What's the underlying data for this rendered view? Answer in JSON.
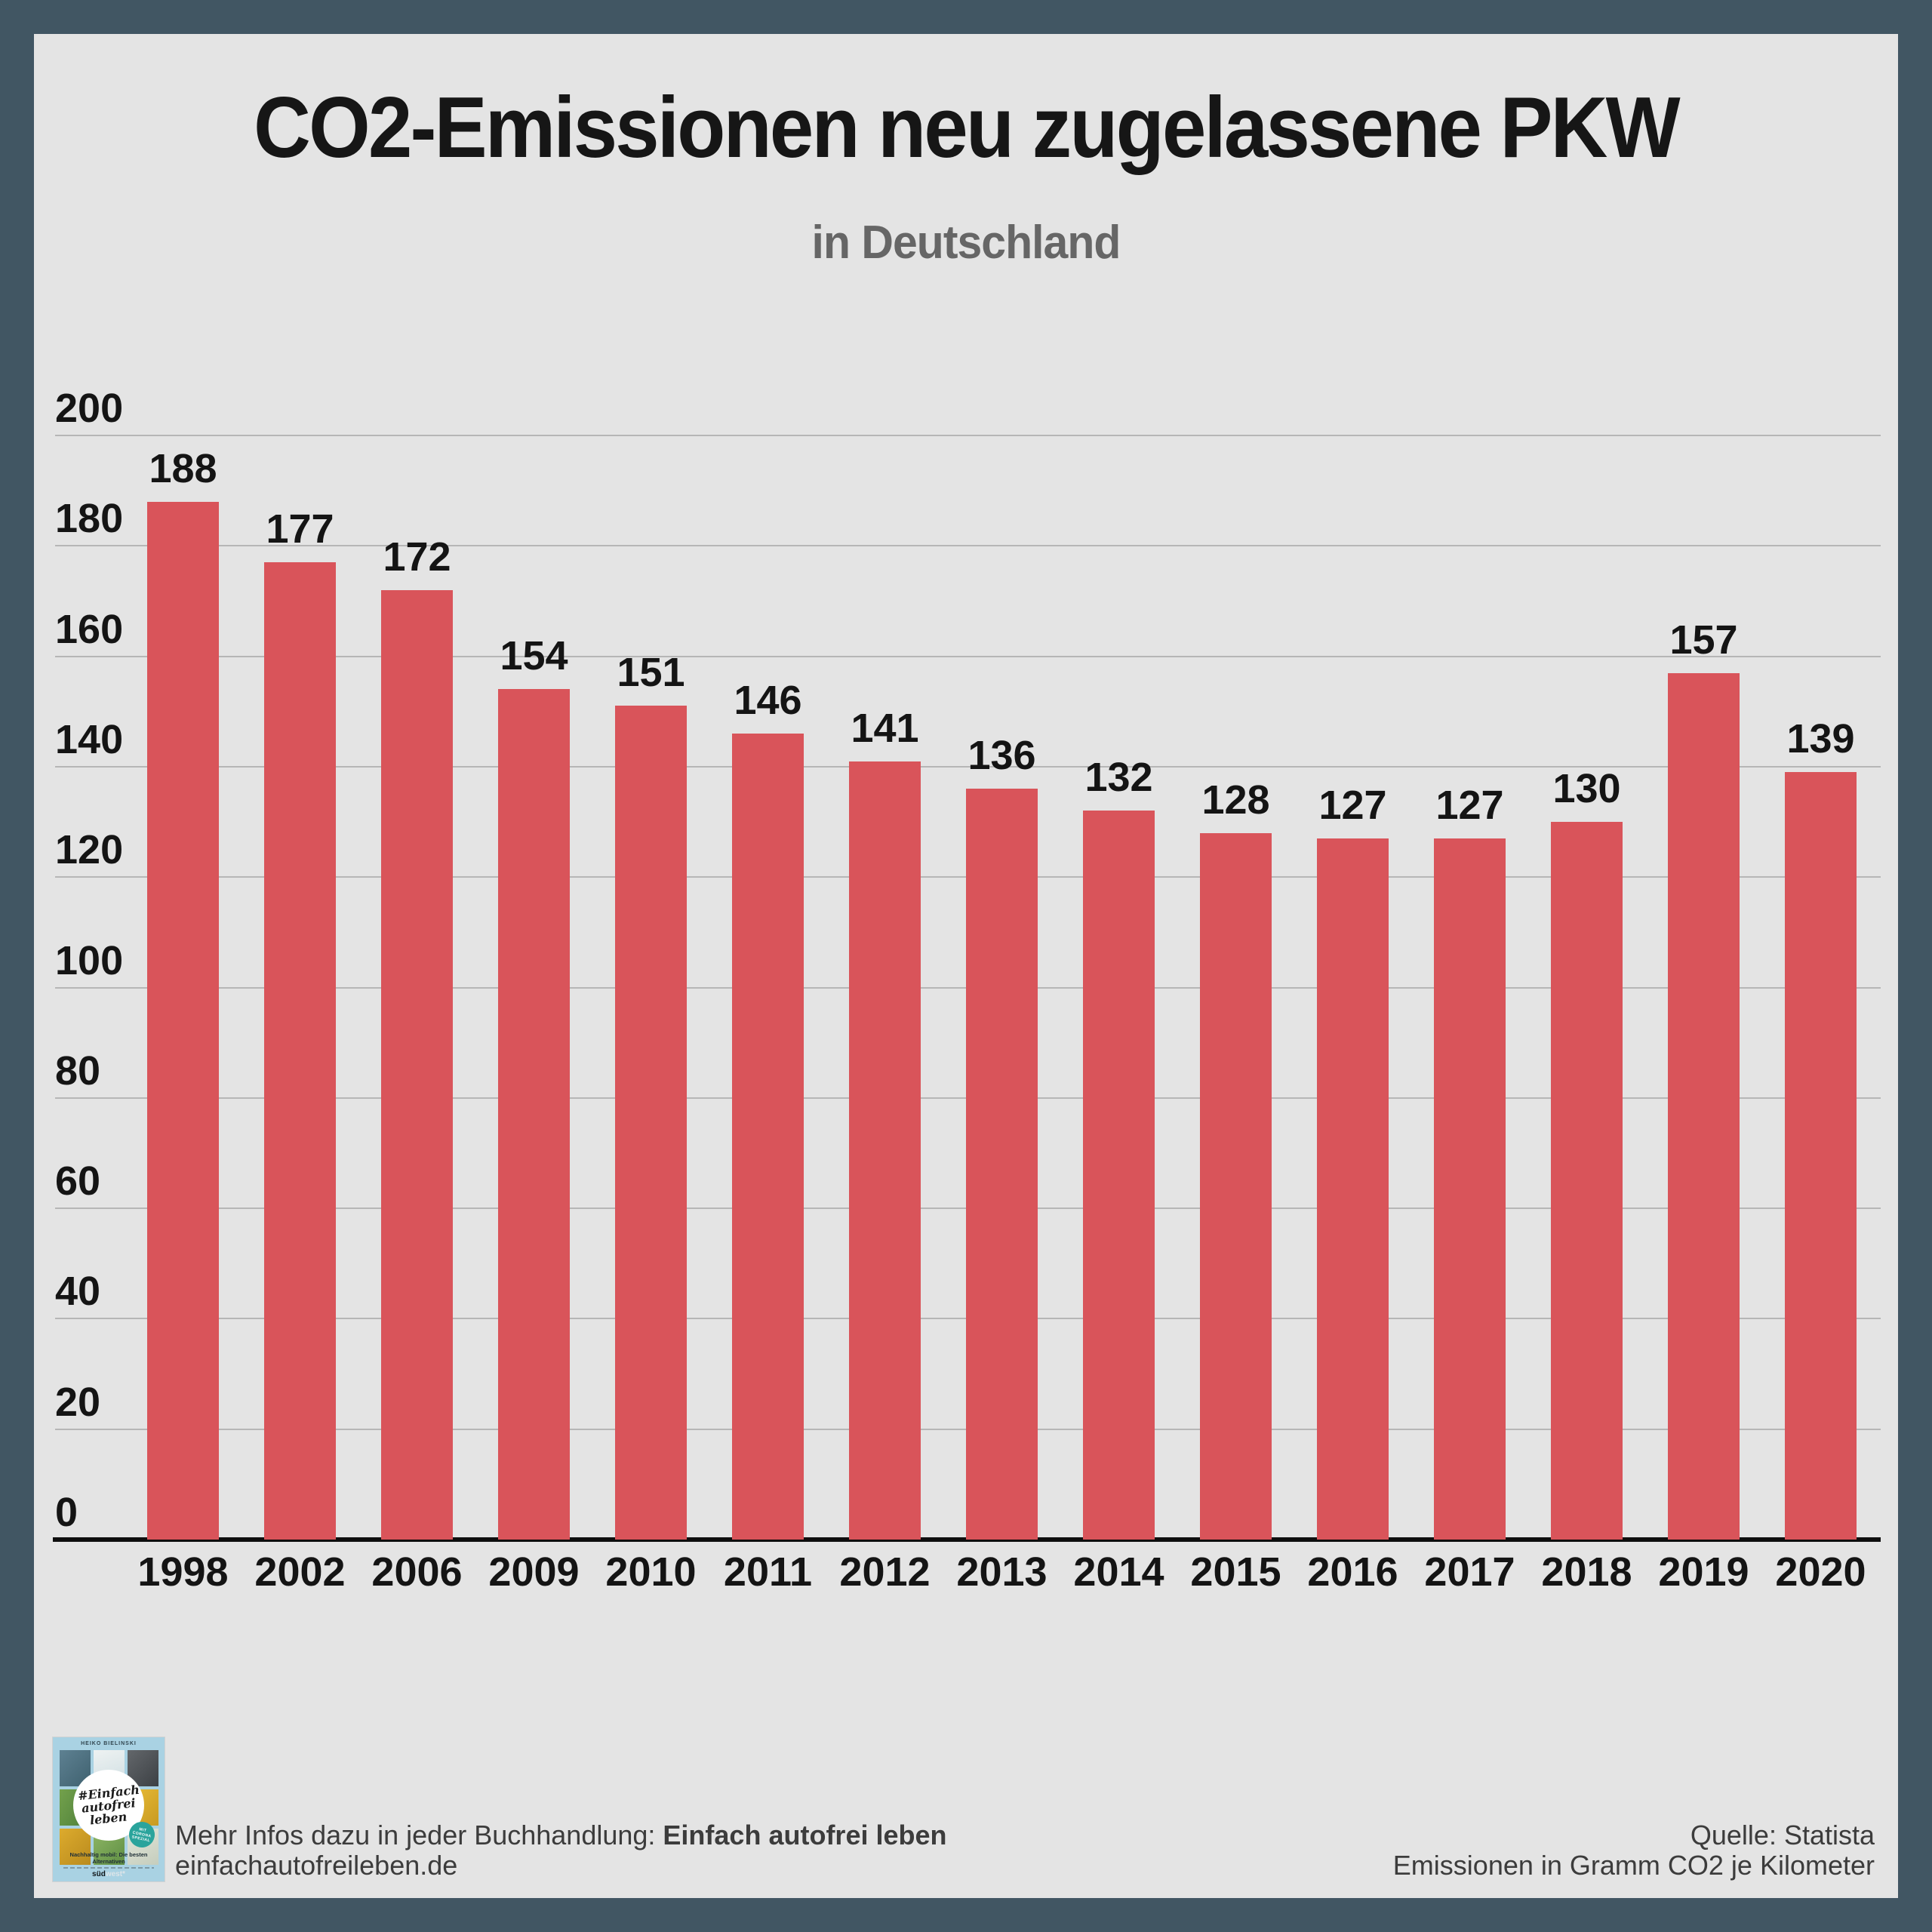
{
  "colors": {
    "frame": "#415663",
    "panel": "#e4e4e4",
    "bar": "#d9545a",
    "grid": "#b6b6b6",
    "axis": "#0e0e0e",
    "title": "#161616",
    "subtitle": "#666666",
    "tick_label": "#141414",
    "footer_text": "#3c3c3c",
    "book_bg": "#a9d2e3",
    "badge": "#2aa49c"
  },
  "header": {
    "title": "CO2-Emissionen neu zugelassene PKW",
    "subtitle": "in Deutschland"
  },
  "chart_data": {
    "type": "bar",
    "title": "CO2-Emissionen neu zugelassene PKW",
    "subtitle": "in Deutschland",
    "categories": [
      "1998",
      "2002",
      "2006",
      "2009",
      "2010",
      "2011",
      "2012",
      "2013",
      "2014",
      "2015",
      "2016",
      "2017",
      "2018",
      "2019",
      "2020"
    ],
    "values": [
      188,
      177,
      172,
      154,
      151,
      146,
      141,
      136,
      132,
      128,
      127,
      127,
      130,
      157,
      139
    ],
    "xlabel": "",
    "ylabel": "",
    "ylim": [
      0,
      200
    ],
    "ytick_step": 20,
    "grid": true,
    "value_labels": true,
    "legend_position": "none",
    "bar_color": "#d9545a"
  },
  "footer": {
    "left_line1_prefix": "Mehr Infos dazu in jeder Buchhandlung: ",
    "left_line1_bold": "Einfach autofrei leben",
    "left_line2": "einfachautofreileben.de",
    "source_line1": "Quelle: Statista",
    "source_line2": "Emissionen in Gramm CO2 je Kilometer"
  },
  "book_cover": {
    "author": "HEIKO BIELINSKI",
    "hash_title": [
      "#Einfach",
      "autofrei",
      "leben"
    ],
    "badge_lines": [
      "MIT",
      "CORONA",
      "SPEZIAL"
    ],
    "tagline": "Nachhaltig mobil: Die besten Alternativen",
    "publisher_bold": "süd",
    "publisher_light": "west*"
  }
}
